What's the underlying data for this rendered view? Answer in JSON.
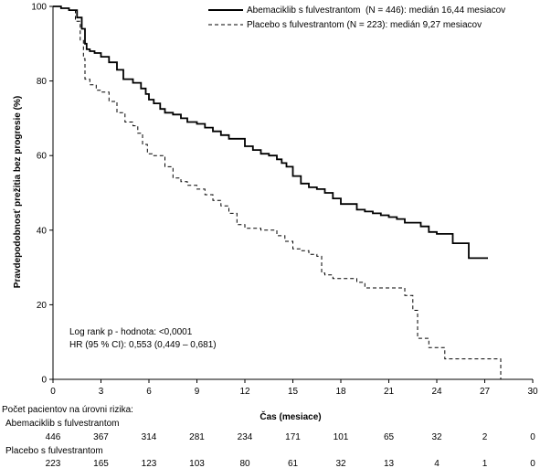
{
  "chart_data": {
    "type": "line",
    "title": "",
    "xlabel": "Čas (mesiace)",
    "ylabel": "Pravdepodobnosť prežitia bez progresie (%)",
    "xlim": [
      0,
      30
    ],
    "ylim": [
      0,
      100
    ],
    "xticks": [
      "0",
      "3",
      "6",
      "9",
      "12",
      "15",
      "18",
      "21",
      "24",
      "27",
      "30"
    ],
    "yticks": [
      "0",
      "20",
      "40",
      "60",
      "80",
      "100"
    ],
    "grid": false,
    "legend_position": "top-right",
    "series": [
      {
        "name": "Abemaciklib s fulvestrantom  (N = 446): medián 16,44 mesiacov",
        "style": "solid",
        "color": "#000000",
        "x": [
          0,
          0.5,
          1.0,
          1.5,
          1.8,
          2.0,
          2.1,
          2.3,
          2.6,
          3.0,
          3.5,
          4.0,
          4.4,
          5.0,
          5.5,
          5.8,
          6.0,
          6.3,
          6.7,
          7.0,
          7.5,
          8.0,
          8.4,
          9.0,
          9.5,
          10.0,
          10.5,
          11.0,
          12.0,
          12.5,
          13.0,
          13.5,
          14.0,
          14.3,
          14.6,
          15.0,
          15.5,
          16.0,
          16.5,
          17.0,
          17.5,
          18.0,
          19.0,
          19.5,
          20.0,
          20.5,
          21.0,
          21.5,
          22.0,
          23.0,
          23.5,
          24.0,
          25.0,
          26.0,
          27.2
        ],
        "y": [
          100,
          99.5,
          99,
          97,
          94,
          90,
          88.5,
          88,
          87.5,
          86.5,
          85,
          83,
          80.5,
          79.5,
          78,
          76.5,
          75,
          74,
          72.5,
          71.5,
          71,
          70,
          69,
          68.5,
          67.5,
          66.5,
          65.5,
          64.5,
          62.5,
          61.5,
          60.5,
          60,
          59,
          58,
          57,
          54.5,
          52.5,
          51.5,
          51,
          50,
          48.5,
          47,
          45.5,
          45,
          44.5,
          44,
          43.5,
          43,
          42,
          41,
          39.5,
          39,
          36.5,
          32.5,
          32.5
        ]
      },
      {
        "name": "Placebo s fulvestrantom (N = 223): medián 9,27 mesiacov",
        "style": "dashed",
        "color": "#000000",
        "x": [
          0,
          0.5,
          1.0,
          1.4,
          1.7,
          1.9,
          2.0,
          2.3,
          2.7,
          3.0,
          3.5,
          4.0,
          4.5,
          5.0,
          5.3,
          5.6,
          5.9,
          6.2,
          7.0,
          7.5,
          8.0,
          8.4,
          9.0,
          9.5,
          10.0,
          10.5,
          11.0,
          11.5,
          12.0,
          13.0,
          14.0,
          14.5,
          15.0,
          15.5,
          16.0,
          16.5,
          16.8,
          17.0,
          17.5,
          18.0,
          19.0,
          19.5,
          20.0,
          21.0,
          22.0,
          22.5,
          22.8,
          23.0,
          23.5,
          24.0,
          24.5,
          25.0,
          26.0,
          27.0,
          27.5,
          28.0
        ],
        "y": [
          100,
          99.5,
          99,
          96,
          91,
          86,
          80.5,
          79,
          77.5,
          77,
          74.5,
          71.5,
          69,
          68,
          66,
          63,
          60.5,
          60,
          57,
          54,
          53,
          52,
          51,
          49.5,
          48,
          46.5,
          44.5,
          41.5,
          40.5,
          40,
          38.5,
          37,
          35,
          34.5,
          33.5,
          33,
          28.5,
          28,
          27,
          27,
          26,
          24.5,
          24.5,
          24.5,
          22.5,
          18.5,
          11,
          11,
          8.5,
          8.5,
          5.5,
          5.5,
          5.5,
          5.5,
          5.5,
          0
        ]
      }
    ],
    "annotations": {
      "logrank": "Log rank p - hodnota: <0,0001",
      "hr": "HR (95 % CI): 0,553 (0,449 – 0,681)"
    },
    "risk_table": {
      "header": "Počet pacientov na úrovni rizika:",
      "groups": [
        {
          "label": "Abemaciklib s fulvestrantom",
          "counts": [
            "446",
            "367",
            "314",
            "281",
            "234",
            "171",
            "101",
            "65",
            "32",
            "2",
            "0"
          ]
        },
        {
          "label": "Placebo s fulvestrantom",
          "counts": [
            "223",
            "165",
            "123",
            "103",
            "80",
            "61",
            "32",
            "13",
            "4",
            "1",
            "0"
          ]
        }
      ]
    }
  }
}
